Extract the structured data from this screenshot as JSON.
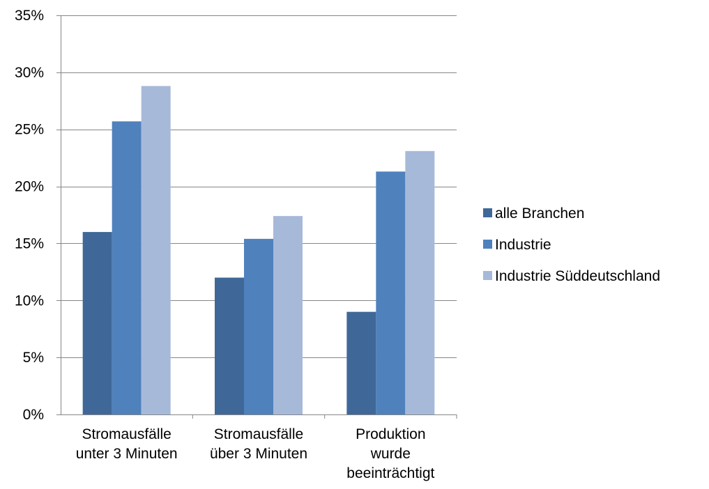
{
  "chart_data": {
    "type": "bar",
    "title": "",
    "xlabel": "",
    "ylabel": "",
    "ylim": [
      0,
      35
    ],
    "y_ticks": [
      0,
      5,
      10,
      15,
      20,
      25,
      30,
      35
    ],
    "y_tick_labels": [
      "0%",
      "5%",
      "10%",
      "15%",
      "20%",
      "25%",
      "30%",
      "35%"
    ],
    "y_unit": "%",
    "grid": true,
    "legend_position": "right",
    "categories": [
      [
        "Stromausfälle",
        "unter 3 Minuten"
      ],
      [
        "Stromausfälle",
        "über 3 Minuten"
      ],
      [
        "Produktion",
        "wurde",
        "beeinträchtigt"
      ]
    ],
    "series": [
      {
        "name": "alle Branchen",
        "color": "#3F6899",
        "values": [
          16,
          12,
          9
        ]
      },
      {
        "name": "Industrie",
        "color": "#4F81BD",
        "values": [
          25.7,
          15.4,
          21.3
        ]
      },
      {
        "name": "Industrie Süddeutschland",
        "color": "#A7B9D9",
        "values": [
          28.8,
          17.4,
          23.1
        ]
      }
    ]
  }
}
